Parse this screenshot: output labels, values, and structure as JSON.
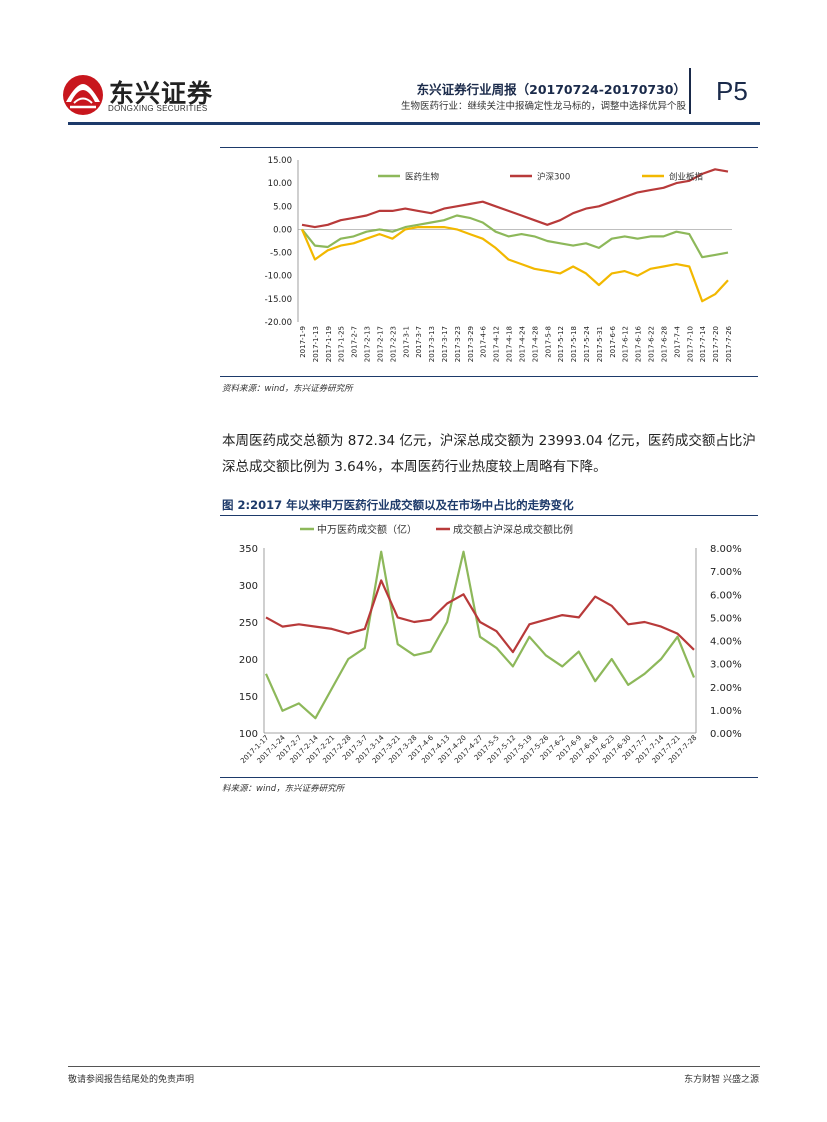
{
  "header": {
    "logo_text": "东兴证券",
    "logo_sub": "DONGXING SECURITIES",
    "report_title": "东兴证券行业周报（20170724-20170730）",
    "report_subtitle": "生物医药行业：继续关注中报确定性龙马标的，调整中选择优异个股",
    "page_label": "P5"
  },
  "figure1": {
    "source": "资料来源：wind，东兴证券研究所"
  },
  "body": {
    "paragraph": "本周医药成交总额为 872.34 亿元，沪深总成交额为 23993.04 亿元，医药成交额占比沪深总成交额比例为 3.64%，本周医药行业热度较上周略有下降。"
  },
  "figure2": {
    "title": "图 2:2017 年以来申万医药行业成交额以及在市场中占比的走势变化",
    "source": "料来源：wind，东兴证券研究所"
  },
  "footer": {
    "left": "敬请参阅报告结尾处的免责声明",
    "right": "东方财智 兴盛之源"
  },
  "colors": {
    "green": "#8db85a",
    "red": "#b83a3a",
    "yellow": "#f2b800",
    "brand": "#c8161d",
    "navy": "#1d3a6a"
  },
  "chart_data": [
    {
      "type": "line",
      "title": "",
      "ylim": [
        -20,
        15
      ],
      "yticks": [
        "15.00",
        "10.00",
        "5.00",
        "0.00",
        "-5.00",
        "-10.00",
        "-15.00",
        "-20.00"
      ],
      "x": [
        "2017-1-9",
        "2017-1-13",
        "2017-1-19",
        "2017-1-25",
        "2017-2-7",
        "2017-2-13",
        "2017-2-17",
        "2017-2-23",
        "2017-3-1",
        "2017-3-7",
        "2017-3-13",
        "2017-3-17",
        "2017-3-23",
        "2017-3-29",
        "2017-4-6",
        "2017-4-12",
        "2017-4-18",
        "2017-4-24",
        "2017-4-28",
        "2017-5-8",
        "2017-5-12",
        "2017-5-18",
        "2017-5-24",
        "2017-5-31",
        "2017-6-6",
        "2017-6-12",
        "2017-6-16",
        "2017-6-22",
        "2017-6-28",
        "2017-7-4",
        "2017-7-10",
        "2017-7-14",
        "2017-7-20",
        "2017-7-26"
      ],
      "legend_position": "top",
      "series": [
        {
          "name": "医药生物",
          "color": "#8db85a",
          "values": [
            0.0,
            -3.5,
            -3.8,
            -2.0,
            -1.5,
            -0.5,
            0.0,
            -0.5,
            0.5,
            1.0,
            1.5,
            2.0,
            3.0,
            2.5,
            1.5,
            -0.5,
            -1.5,
            -1.0,
            -1.5,
            -2.5,
            -3.0,
            -3.5,
            -3.0,
            -4.0,
            -2.0,
            -1.5,
            -2.0,
            -1.5,
            -1.5,
            -0.5,
            -1.0,
            -6.0,
            -5.5,
            -5.0
          ]
        },
        {
          "name": "沪深300",
          "color": "#b83a3a",
          "values": [
            1.0,
            0.5,
            1.0,
            2.0,
            2.5,
            3.0,
            4.0,
            4.0,
            4.5,
            4.0,
            3.5,
            4.5,
            5.0,
            5.5,
            6.0,
            5.0,
            4.0,
            3.0,
            2.0,
            1.0,
            2.0,
            3.5,
            4.5,
            5.0,
            6.0,
            7.0,
            8.0,
            8.5,
            9.0,
            10.0,
            10.5,
            12.0,
            13.0,
            12.5
          ]
        },
        {
          "name": "创业板指",
          "color": "#f2b800",
          "values": [
            0.0,
            -6.5,
            -4.5,
            -3.5,
            -3.0,
            -2.0,
            -1.0,
            -2.0,
            0.0,
            0.5,
            0.5,
            0.5,
            0.0,
            -1.0,
            -2.0,
            -4.0,
            -6.5,
            -7.5,
            -8.5,
            -9.0,
            -9.5,
            -8.0,
            -9.5,
            -12.0,
            -9.5,
            -9.0,
            -10.0,
            -8.5,
            -8.0,
            -7.5,
            -8.0,
            -15.5,
            -14.0,
            -11.0
          ]
        }
      ]
    },
    {
      "type": "line",
      "title": "",
      "ylim_left": [
        100,
        350
      ],
      "ylim_right": [
        0,
        8
      ],
      "yticks_left": [
        "350",
        "300",
        "250",
        "200",
        "150",
        "100"
      ],
      "yticks_right": [
        "8.00%",
        "7.00%",
        "6.00%",
        "5.00%",
        "4.00%",
        "3.00%",
        "2.00%",
        "1.00%",
        "0.00%"
      ],
      "x": [
        "2017-1-17",
        "2017-1-24",
        "2017-2-7",
        "2017-2-14",
        "2017-2-21",
        "2017-2-28",
        "2017-3-7",
        "2017-3-14",
        "2017-3-21",
        "2017-3-28",
        "2017-4-6",
        "2017-4-13",
        "2017-4-20",
        "2017-4-27",
        "2017-5-5",
        "2017-5-12",
        "2017-5-19",
        "2017-5-26",
        "2017-6-2",
        "2017-6-9",
        "2017-6-16",
        "2017-6-23",
        "2017-6-30",
        "2017-7-7",
        "2017-7-14",
        "2017-7-21",
        "2017-7-28"
      ],
      "legend_position": "top",
      "series": [
        {
          "name": "中万医药成交额（亿）",
          "color": "#8db85a",
          "axis": "left",
          "values": [
            180,
            130,
            140,
            120,
            160,
            200,
            215,
            345,
            220,
            205,
            210,
            250,
            345,
            230,
            215,
            190,
            230,
            205,
            190,
            210,
            170,
            200,
            165,
            180,
            200,
            230,
            175
          ]
        },
        {
          "name": "成交额占沪深总成交额比例",
          "color": "#b83a3a",
          "axis": "right",
          "values": [
            5.0,
            4.6,
            4.7,
            4.6,
            4.5,
            4.3,
            4.5,
            6.6,
            5.0,
            4.8,
            4.9,
            5.6,
            6.0,
            4.8,
            4.4,
            3.5,
            4.7,
            4.9,
            5.1,
            5.0,
            5.9,
            5.5,
            4.7,
            4.8,
            4.6,
            4.3,
            3.6
          ]
        }
      ]
    }
  ]
}
